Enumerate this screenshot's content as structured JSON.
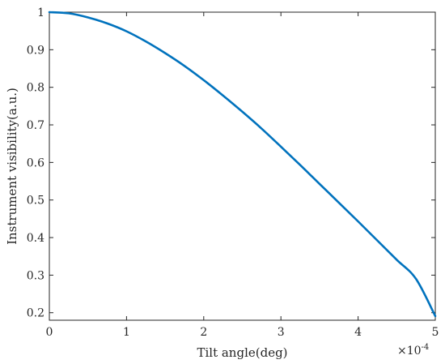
{
  "chart_data": {
    "type": "line",
    "title": "",
    "xlabel": "Tilt angle(deg)",
    "ylabel": "Instrument visibility(a.u.)",
    "x_exponent_label": "×10",
    "x_exponent_power": "-4",
    "xlim": [
      0,
      5
    ],
    "ylim": [
      0.18,
      1.0
    ],
    "x_ticks": [
      0,
      1,
      2,
      3,
      4,
      5
    ],
    "x_tick_labels": [
      "0",
      "1",
      "2",
      "3",
      "4",
      "5"
    ],
    "y_ticks": [
      0.2,
      0.3,
      0.4,
      0.5,
      0.6,
      0.7,
      0.8,
      0.9,
      1.0
    ],
    "y_tick_labels": [
      "0.2",
      "0.3",
      "0.4",
      "0.5",
      "0.6",
      "0.7",
      "0.8",
      "0.9",
      "1"
    ],
    "grid": false,
    "line_color": "#0072BD",
    "series": [
      {
        "x": [
          0,
          0.25,
          0.5,
          0.75,
          1.0,
          1.25,
          1.5,
          1.75,
          2.0,
          2.25,
          2.5,
          2.75,
          3.0,
          3.25,
          3.5,
          3.75,
          4.0,
          4.25,
          4.5,
          4.75,
          5.0
        ],
        "values": [
          1.0,
          0.997,
          0.986,
          0.97,
          0.949,
          0.922,
          0.891,
          0.857,
          0.819,
          0.778,
          0.735,
          0.69,
          0.642,
          0.593,
          0.543,
          0.493,
          0.443,
          0.392,
          0.341,
          0.29,
          0.191
        ]
      }
    ]
  }
}
